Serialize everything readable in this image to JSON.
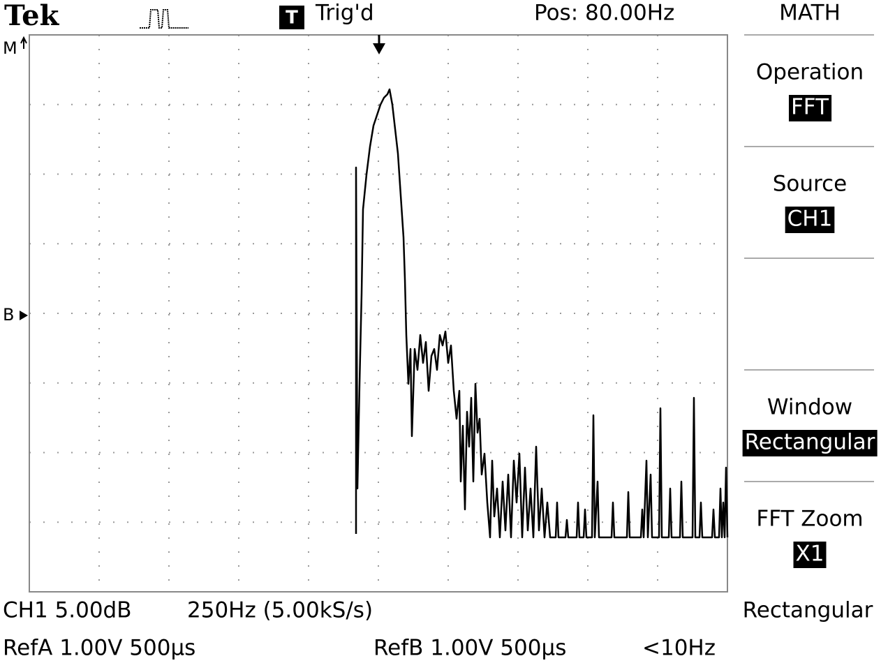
{
  "header": {
    "brand": "Tek",
    "trigger_icon": "T",
    "trigger_state": "Trig'd",
    "position": "Pos: 80.00Hz"
  },
  "menu": {
    "title": "MATH",
    "items": [
      {
        "label": "Operation",
        "value": "FFT"
      },
      {
        "label": "Source",
        "value": "CH1"
      },
      {
        "label": "Window",
        "value": "Rectangular"
      },
      {
        "label": "FFT Zoom",
        "value": "X1"
      }
    ],
    "footer": "Rectangular"
  },
  "markers": {
    "math": "M",
    "ref_b": "B"
  },
  "status": {
    "ch1": "CH1 5.00dB",
    "timebase": "250Hz (5.00kS/s)",
    "ref_a": "RefA 1.00V 500µs",
    "ref_b": "RefB 1.00V 500µs",
    "frequency": "<10Hz"
  }
}
